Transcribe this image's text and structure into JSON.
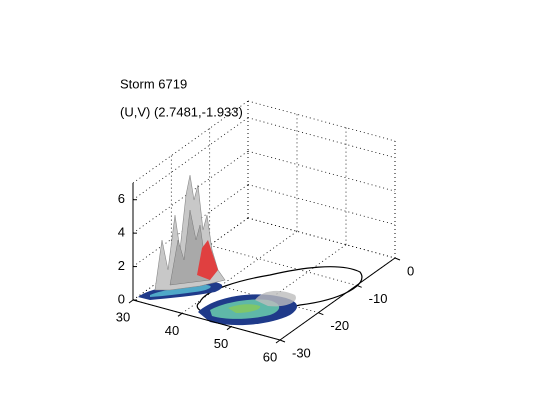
{
  "chart_data": {
    "type": "surface3d",
    "title": "Storm 6719",
    "subtitle": "(U,V) (2.7481,-1.933)",
    "xlim": [
      30,
      60
    ],
    "xticks": [
      30,
      40,
      50,
      60
    ],
    "ylim": [
      -30,
      0
    ],
    "yticks": [
      -30,
      -20,
      -10,
      0
    ],
    "zlim": [
      0,
      7
    ],
    "zticks": [
      0,
      2,
      4,
      6
    ],
    "grid": true
  }
}
